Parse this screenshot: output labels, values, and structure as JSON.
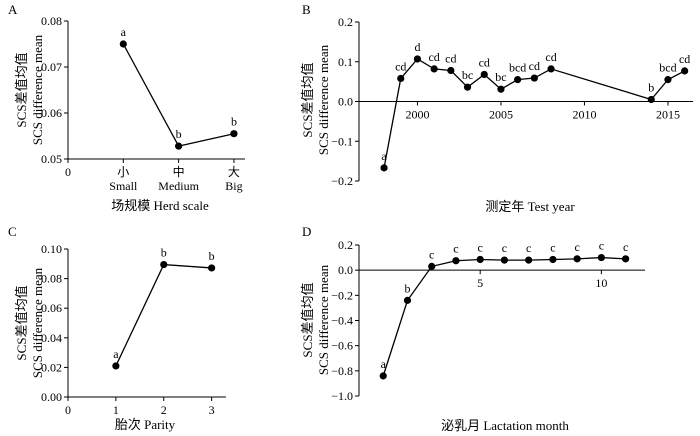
{
  "chart_data": [
    {
      "panel": "A",
      "type": "line",
      "title": "",
      "xlabel": "场规模  Herd scale",
      "ylabel": [
        "SCS差值均值",
        "SCS difference mean"
      ],
      "categories": [
        "小|Small",
        "中|Medium",
        "大|Big"
      ],
      "x": [
        1,
        2,
        3
      ],
      "values": [
        0.075,
        0.0528,
        0.0555
      ],
      "letters": [
        "a",
        "b",
        "b"
      ],
      "xlim": [
        0,
        3.2
      ],
      "ylim": [
        0.05,
        0.08
      ],
      "xticks": [
        {
          "v": 0,
          "l": "0"
        }
      ],
      "yticks": [
        0.05,
        0.06,
        0.07,
        0.08
      ],
      "ytick_labels": [
        "0.05",
        "0.06",
        "0.07",
        "0.08"
      ]
    },
    {
      "panel": "B",
      "type": "line",
      "title": "",
      "xlabel": "测定年  Test year",
      "ylabel": [
        "SCS差值均值",
        "SCS difference mean"
      ],
      "x": [
        1998,
        1999,
        2000,
        2001,
        2002,
        2003,
        2004,
        2005,
        2006,
        2007,
        2008,
        2014,
        2015,
        2016
      ],
      "values": [
        -0.167,
        0.058,
        0.107,
        0.082,
        0.078,
        0.036,
        0.068,
        0.031,
        0.055,
        0.059,
        0.082,
        0.005,
        0.055,
        0.077
      ],
      "letters": [
        "a",
        "cd",
        "d",
        "cd",
        "cd",
        "bc",
        "cd",
        "bc",
        "bcd",
        "cd",
        "cd",
        "b",
        "bcd",
        "cd"
      ],
      "xlim": [
        1996.5,
        2016.5
      ],
      "ylim": [
        -0.2,
        0.2
      ],
      "xticks": [
        {
          "v": 2000,
          "l": "2000"
        },
        {
          "v": 2005,
          "l": "2005"
        },
        {
          "v": 2010,
          "l": "2010"
        },
        {
          "v": 2015,
          "l": "2015"
        }
      ],
      "yticks": [
        -0.2,
        -0.1,
        0,
        0.1,
        0.2
      ],
      "ytick_labels": [
        "−0.2",
        "−0.1",
        "0.0",
        "0.1",
        "0.2"
      ]
    },
    {
      "panel": "C",
      "type": "line",
      "title": "",
      "xlabel": "胎次  Parity",
      "ylabel": [
        "SCS差值均值",
        "SCS difference mean"
      ],
      "x": [
        1,
        2,
        3
      ],
      "values": [
        0.021,
        0.0895,
        0.0872
      ],
      "letters": [
        "a",
        "b",
        "b"
      ],
      "xlim": [
        0,
        3.3
      ],
      "ylim": [
        0,
        0.1
      ],
      "xticks": [
        {
          "v": 0,
          "l": "0"
        },
        {
          "v": 1,
          "l": "1"
        },
        {
          "v": 2,
          "l": "2"
        },
        {
          "v": 3,
          "l": "3"
        }
      ],
      "yticks": [
        0,
        0.02,
        0.04,
        0.06,
        0.08,
        0.1
      ],
      "ytick_labels": [
        "0.00",
        "0.02",
        "0.04",
        "0.06",
        "0.08",
        "0.10"
      ]
    },
    {
      "panel": "D",
      "type": "line",
      "title": "",
      "xlabel": "泌乳月  Lactation month",
      "ylabel": [
        "SCS差值均值",
        "SCS difference mean"
      ],
      "x": [
        1,
        2,
        3,
        4,
        5,
        6,
        7,
        8,
        9,
        10,
        11
      ],
      "values": [
        -0.84,
        -0.24,
        0.03,
        0.075,
        0.085,
        0.08,
        0.08,
        0.085,
        0.09,
        0.1,
        0.09
      ],
      "letters": [
        "a",
        "b",
        "c",
        "c",
        "c",
        "c",
        "c",
        "c",
        "c",
        "c",
        "c"
      ],
      "xlim": [
        0,
        11.8
      ],
      "ylim": [
        -1.0,
        0.2
      ],
      "xticks": [
        {
          "v": 5,
          "l": "5"
        },
        {
          "v": 10,
          "l": "10"
        }
      ],
      "yticks": [
        -1.0,
        -0.8,
        -0.6,
        -0.4,
        -0.2,
        0,
        0.2
      ],
      "ytick_labels": [
        "−1.0",
        "−0.8",
        "−0.6",
        "−0.4",
        "−0.2",
        "0.0",
        "0.2"
      ]
    }
  ]
}
